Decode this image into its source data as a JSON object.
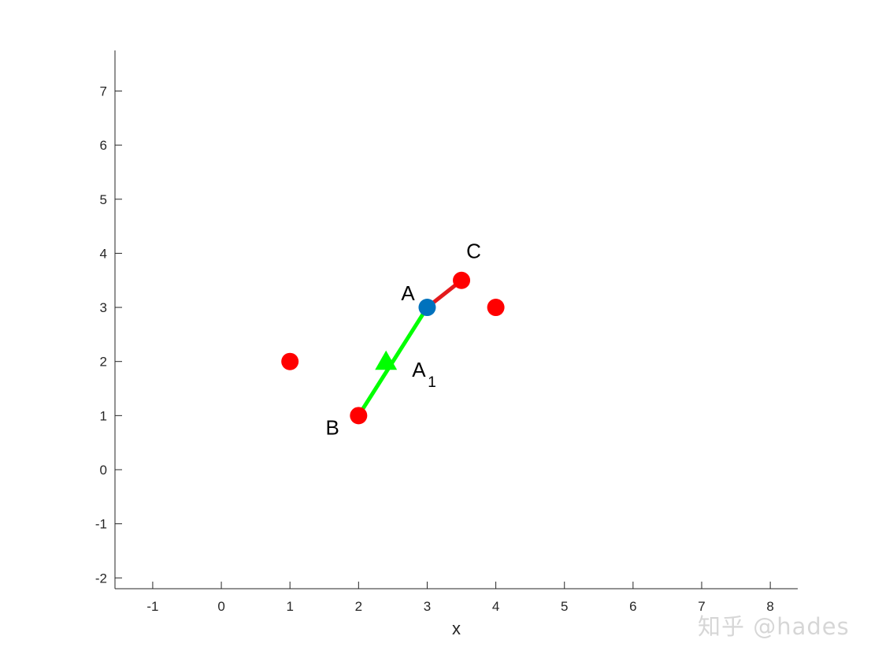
{
  "chart_data": {
    "type": "scatter",
    "xlabel": "x",
    "ylabel": "",
    "xlim": [
      -1.55,
      8.4
    ],
    "ylim": [
      -2.2,
      7.75
    ],
    "xticks": [
      -1,
      0,
      1,
      2,
      3,
      4,
      5,
      6,
      7,
      8
    ],
    "yticks": [
      -2,
      -1,
      0,
      1,
      2,
      3,
      4,
      5,
      6,
      7
    ],
    "grid": false,
    "colors": {
      "red": "#ff0000",
      "blue": "#0072bd",
      "green": "#00ff00",
      "line_red": "#e31a1c"
    },
    "points": [
      {
        "x": 1,
        "y": 2,
        "color": "red",
        "marker": "circle"
      },
      {
        "x": 2,
        "y": 1,
        "color": "red",
        "marker": "circle"
      },
      {
        "x": 3.5,
        "y": 3.5,
        "color": "red",
        "marker": "circle"
      },
      {
        "x": 4,
        "y": 3,
        "color": "red",
        "marker": "circle"
      },
      {
        "x": 3,
        "y": 3,
        "color": "blue",
        "marker": "circle"
      },
      {
        "x": 2.4,
        "y": 2,
        "color": "green",
        "marker": "triangle"
      }
    ],
    "segments": [
      {
        "from": [
          3,
          3
        ],
        "to": [
          2,
          1
        ],
        "color": "green"
      },
      {
        "from": [
          3,
          3
        ],
        "to": [
          3.5,
          3.5
        ],
        "color": "line_red"
      }
    ],
    "annotations": [
      {
        "text": "A",
        "sub": "",
        "x": 2.62,
        "y": 3.13
      },
      {
        "text": "B",
        "sub": "",
        "x": 1.52,
        "y": 0.65
      },
      {
        "text": "C",
        "sub": "",
        "x": 3.57,
        "y": 3.91
      },
      {
        "text": "A",
        "sub": "1",
        "x": 2.78,
        "y": 1.72
      }
    ]
  },
  "watermark": "知乎 @hades"
}
